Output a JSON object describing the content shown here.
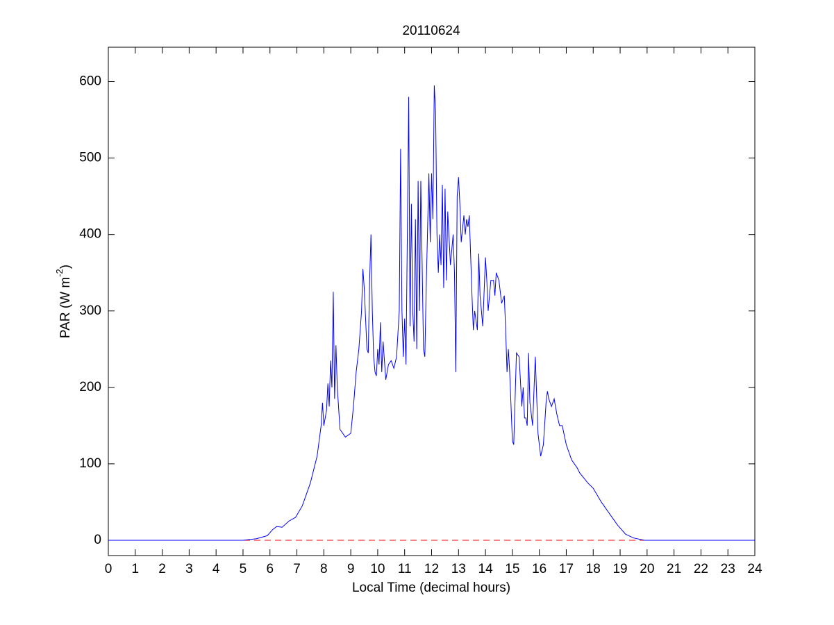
{
  "chart_data": {
    "type": "line",
    "title": "20110624",
    "xlabel": "Local Time (decimal hours)",
    "ylabel": [
      "PAR (W m",
      "-2",
      ")"
    ],
    "xlim": [
      0,
      24
    ],
    "xticks": [
      0,
      1,
      2,
      3,
      4,
      5,
      6,
      7,
      8,
      9,
      10,
      11,
      12,
      13,
      14,
      15,
      16,
      17,
      18,
      19,
      20,
      21,
      22,
      23,
      24
    ],
    "ylim": [
      -20,
      645
    ],
    "yticks": [
      0,
      100,
      200,
      300,
      400,
      500,
      600
    ],
    "zero_line": {
      "y": 0,
      "color": "#ff0000",
      "dashed": true
    },
    "series": [
      {
        "color": "#0000ff",
        "x": [
          0,
          5,
          5.5,
          5.9,
          6.1,
          6.25,
          6.45,
          6.7,
          6.95,
          7.2,
          7.5,
          7.75,
          7.9,
          7.95,
          8.0,
          8.1,
          8.15,
          8.2,
          8.25,
          8.3,
          8.35,
          8.4,
          8.45,
          8.5,
          8.6,
          8.8,
          9.0,
          9.1,
          9.2,
          9.3,
          9.4,
          9.45,
          9.5,
          9.6,
          9.65,
          9.7,
          9.75,
          9.8,
          9.85,
          9.9,
          9.95,
          10.0,
          10.05,
          10.1,
          10.15,
          10.2,
          10.3,
          10.4,
          10.5,
          10.6,
          10.7,
          10.8,
          10.85,
          10.9,
          10.95,
          11.0,
          11.05,
          11.1,
          11.15,
          11.2,
          11.25,
          11.3,
          11.35,
          11.4,
          11.45,
          11.5,
          11.55,
          11.6,
          11.7,
          11.75,
          11.8,
          11.9,
          11.95,
          12.0,
          12.05,
          12.1,
          12.15,
          12.2,
          12.25,
          12.3,
          12.35,
          12.4,
          12.45,
          12.5,
          12.55,
          12.6,
          12.7,
          12.8,
          12.85,
          12.9,
          12.95,
          13.0,
          13.05,
          13.1,
          13.2,
          13.25,
          13.3,
          13.35,
          13.4,
          13.5,
          13.55,
          13.6,
          13.7,
          13.75,
          13.8,
          13.9,
          14.0,
          14.05,
          14.1,
          14.2,
          14.3,
          14.35,
          14.4,
          14.5,
          14.6,
          14.7,
          14.75,
          14.8,
          14.85,
          14.9,
          15.0,
          15.05,
          15.15,
          15.25,
          15.35,
          15.4,
          15.45,
          15.5,
          15.55,
          15.6,
          15.65,
          15.75,
          15.85,
          15.95,
          16.05,
          16.15,
          16.25,
          16.3,
          16.35,
          16.45,
          16.55,
          16.65,
          16.75,
          16.85,
          17.0,
          17.2,
          17.4,
          17.5,
          17.8,
          18.0,
          18.3,
          18.6,
          18.9,
          19.2,
          19.5,
          19.9,
          24
        ],
        "values": [
          0,
          0,
          2,
          6,
          14,
          18,
          17,
          25,
          30,
          45,
          75,
          110,
          150,
          180,
          150,
          170,
          205,
          175,
          235,
          200,
          325,
          185,
          255,
          200,
          145,
          135,
          140,
          175,
          220,
          250,
          300,
          355,
          330,
          250,
          245,
          340,
          400,
          300,
          240,
          220,
          215,
          250,
          230,
          285,
          220,
          260,
          210,
          230,
          235,
          225,
          240,
          300,
          512,
          300,
          240,
          290,
          230,
          400,
          580,
          280,
          440,
          300,
          260,
          420,
          250,
          470,
          300,
          470,
          250,
          240,
          330,
          480,
          390,
          480,
          420,
          595,
          560,
          400,
          350,
          400,
          360,
          465,
          330,
          460,
          340,
          430,
          360,
          400,
          350,
          220,
          450,
          475,
          440,
          390,
          425,
          400,
          420,
          410,
          425,
          320,
          275,
          300,
          275,
          375,
          320,
          280,
          370,
          340,
          300,
          340,
          340,
          320,
          350,
          340,
          310,
          320,
          275,
          220,
          250,
          220,
          130,
          125,
          245,
          240,
          175,
          200,
          160,
          160,
          150,
          245,
          180,
          150,
          240,
          140,
          110,
          125,
          180,
          195,
          185,
          175,
          185,
          165,
          150,
          150,
          125,
          105,
          95,
          88,
          75,
          68,
          50,
          35,
          20,
          8,
          3,
          0,
          0
        ]
      }
    ]
  }
}
